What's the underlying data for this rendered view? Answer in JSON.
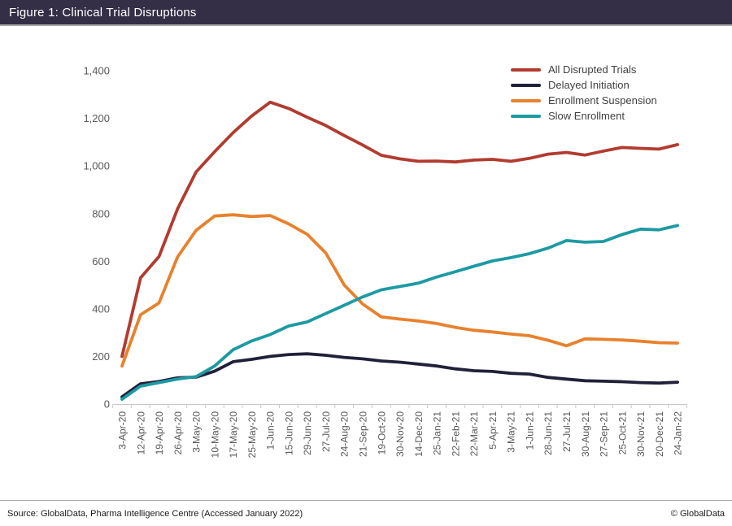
{
  "title_bar": {
    "title": "Figure 1: Clinical Trial Disruptions"
  },
  "footer": {
    "source": "Source: GlobalData, Pharma Intelligence Centre (Accessed January 2022)",
    "copyright": "© GlobalData"
  },
  "colors": {
    "title_bar_bg": "#342E46",
    "axis_text": "#595959",
    "axis_line": "#C8C8C8",
    "legend_text": "#3F3F3F"
  },
  "chart_data": {
    "type": "line",
    "title": "Figure 1: Clinical Trial Disruptions",
    "xlabel": "",
    "ylabel": "",
    "ylim": [
      0,
      1400
    ],
    "ytick_step": 200,
    "grid": false,
    "legend_position": "top-right",
    "categories": [
      "3-Apr-20",
      "12-Apr-20",
      "19-Apr-20",
      "26-Apr-20",
      "3-May-20",
      "10-May-20",
      "17-May-20",
      "25-May-20",
      "1-Jun-20",
      "15-Jun-20",
      "29-Jun-20",
      "27-Jul-20",
      "24-Aug-20",
      "21-Sep-20",
      "19-Oct-20",
      "30-Nov-20",
      "14-Dec-20",
      "25-Jan-21",
      "22-Feb-21",
      "22-Mar-21",
      "5-Apr-21",
      "3-May-21",
      "1-Jun-21",
      "28-Jun-21",
      "27-Jul-21",
      "30-Aug-21",
      "27-Sep-21",
      "25-Oct-21",
      "30-Nov-21",
      "20-Dec-21",
      "24-Jan-22"
    ],
    "series": [
      {
        "name": "All Disrupted Trials",
        "color": "#B23B2F",
        "values": [
          200,
          530,
          620,
          820,
          975,
          1060,
          1140,
          1210,
          1268,
          1242,
          1205,
          1170,
          1128,
          1088,
          1045,
          1030,
          1020,
          1021,
          1017,
          1025,
          1028,
          1020,
          1032,
          1050,
          1057,
          1046,
          1063,
          1078,
          1074,
          1071,
          1090
        ]
      },
      {
        "name": "Delayed Initiation",
        "color": "#202139",
        "values": [
          30,
          85,
          95,
          110,
          113,
          138,
          178,
          188,
          200,
          208,
          211,
          205,
          196,
          190,
          181,
          176,
          168,
          160,
          148,
          140,
          137,
          129,
          126,
          112,
          105,
          98,
          96,
          94,
          90,
          88,
          92
        ]
      },
      {
        "name": "Enrollment Suspension",
        "color": "#E8812D",
        "values": [
          160,
          375,
          425,
          618,
          730,
          790,
          795,
          788,
          792,
          757,
          713,
          635,
          500,
          420,
          366,
          357,
          349,
          338,
          322,
          310,
          303,
          294,
          287,
          268,
          245,
          274,
          272,
          269,
          264,
          258,
          256
        ]
      },
      {
        "name": "Slow Enrollment",
        "color": "#1D9AA3",
        "values": [
          20,
          75,
          90,
          105,
          115,
          160,
          228,
          265,
          292,
          328,
          345,
          380,
          415,
          450,
          480,
          494,
          508,
          534,
          556,
          579,
          601,
          615,
          632,
          655,
          687,
          680,
          683,
          712,
          735,
          732,
          750
        ]
      }
    ]
  }
}
